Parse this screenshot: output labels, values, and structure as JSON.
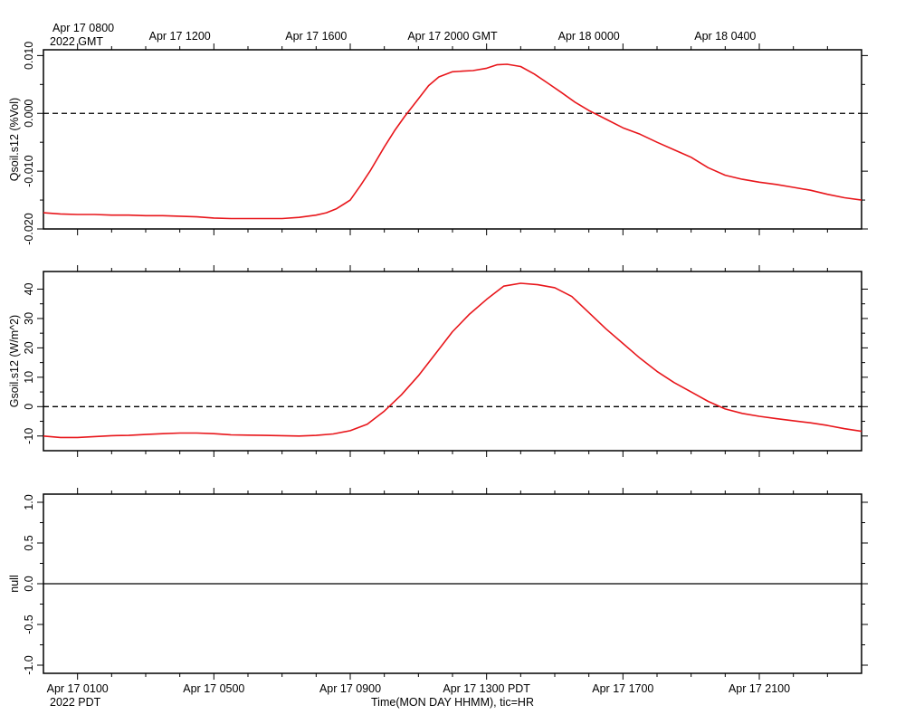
{
  "chart_data": [
    {
      "type": "line",
      "name_key": "panel-qsoil",
      "ylabel": "Qsoil.s12 (%Vol)",
      "ylim": [
        -0.02,
        0.011
      ],
      "yticks": [
        -0.02,
        -0.01,
        0.0,
        0.01
      ],
      "ytick_labels": [
        "-0.020",
        "-0.010",
        "0.000",
        "0.010"
      ],
      "reference_line": {
        "y": 0.0,
        "style": "dashed"
      },
      "series": [
        {
          "color": "#e8161b",
          "x": [
            0,
            0.5,
            1,
            1.5,
            2,
            2.5,
            3,
            3.5,
            4,
            4.5,
            5,
            5.5,
            6,
            6.5,
            7,
            7.5,
            8,
            8.3,
            8.6,
            9,
            9.3,
            9.6,
            10,
            10.3,
            10.6,
            11,
            11.3,
            11.6,
            12,
            12.3,
            12.6,
            13,
            13.3,
            13.6,
            14,
            14.4,
            14.8,
            15.2,
            15.6,
            16,
            16.5,
            17,
            17.5,
            18,
            18.5,
            19,
            19.5,
            20,
            20.5,
            21,
            21.5,
            22,
            22.5,
            23,
            23.5,
            24
          ],
          "y": [
            -0.0172,
            -0.0174,
            -0.0175,
            -0.0175,
            -0.0176,
            -0.0176,
            -0.0177,
            -0.0177,
            -0.0178,
            -0.0179,
            -0.0181,
            -0.0182,
            -0.0182,
            -0.0182,
            -0.0182,
            -0.018,
            -0.0176,
            -0.0172,
            -0.0165,
            -0.015,
            -0.0125,
            -0.0098,
            -0.0058,
            -0.003,
            -0.0005,
            0.0025,
            0.0048,
            0.0063,
            0.0072,
            0.0073,
            0.0074,
            0.0078,
            0.0084,
            0.0085,
            0.0081,
            0.0068,
            0.0052,
            0.0036,
            0.0019,
            0.0005,
            -0.001,
            -0.0025,
            -0.0036,
            -0.005,
            -0.0063,
            -0.0076,
            -0.0094,
            -0.0107,
            -0.0114,
            -0.0119,
            -0.0123,
            -0.0128,
            -0.0133,
            -0.014,
            -0.0146,
            -0.015
          ]
        }
      ]
    },
    {
      "type": "line",
      "name_key": "panel-gsoil",
      "ylabel": "Gsoil.s12 (W/m^2)",
      "ylim": [
        -15,
        46
      ],
      "yticks": [
        -10,
        0,
        10,
        20,
        30,
        40
      ],
      "ytick_labels": [
        "-10",
        "0",
        "10",
        "20",
        "30",
        "40"
      ],
      "reference_line": {
        "y": 0,
        "style": "dashed"
      },
      "series": [
        {
          "color": "#e8161b",
          "x": [
            0,
            0.5,
            1,
            1.5,
            2,
            2.5,
            3,
            3.5,
            4,
            4.5,
            5,
            5.5,
            6,
            6.5,
            7,
            7.5,
            8,
            8.5,
            9,
            9.5,
            10,
            10.5,
            11,
            11.5,
            12,
            12.5,
            13,
            13.5,
            14,
            14.5,
            15,
            15.5,
            16,
            16.5,
            17,
            17.5,
            18,
            18.5,
            19,
            19.5,
            20,
            20.5,
            21,
            21.5,
            22,
            22.5,
            23,
            23.5,
            24
          ],
          "y": [
            -10,
            -10.5,
            -10.5,
            -10.2,
            -9.9,
            -9.8,
            -9.5,
            -9.2,
            -9,
            -9,
            -9.2,
            -9.6,
            -9.7,
            -9.8,
            -9.9,
            -10,
            -9.8,
            -9.3,
            -8.2,
            -6,
            -1.5,
            4,
            10.5,
            18,
            25.5,
            31.5,
            36.5,
            41,
            42,
            41.5,
            40.5,
            37.5,
            32,
            26.5,
            21.5,
            16.5,
            12,
            8.2,
            5,
            1.8,
            -0.8,
            -2.3,
            -3.3,
            -4.1,
            -4.8,
            -5.5,
            -6.4,
            -7.5,
            -8.4
          ]
        }
      ]
    },
    {
      "type": "line",
      "name_key": "panel-null",
      "ylabel": "null",
      "ylim": [
        -1.1,
        1.1
      ],
      "yticks": [
        -1.0,
        -0.5,
        0.0,
        0.5,
        1.0
      ],
      "ytick_labels": [
        "-1.0",
        "-0.5",
        "0.0",
        "0.5",
        "1.0"
      ],
      "reference_line": {
        "y": 0,
        "style": "solid"
      },
      "series": []
    }
  ],
  "top_axis": {
    "start_label_line1": "Apr 17 0800",
    "start_label_line2": "2022 GMT",
    "labels": [
      {
        "x": 4,
        "text": "Apr 17 1200"
      },
      {
        "x": 8,
        "text": "Apr 17 1600"
      },
      {
        "x": 12,
        "text": "Apr 17 2000 GMT"
      },
      {
        "x": 16,
        "text": "Apr 18 0000"
      },
      {
        "x": 20,
        "text": "Apr 18 0400"
      }
    ]
  },
  "bottom_axis": {
    "start_label_line2": "2022 PDT",
    "labels": [
      {
        "x": 1,
        "text": "Apr 17 0100"
      },
      {
        "x": 5,
        "text": "Apr 17 0500"
      },
      {
        "x": 9,
        "text": "Apr 17 0900"
      },
      {
        "x": 13,
        "text": "Apr 17 1300 PDT"
      },
      {
        "x": 17,
        "text": "Apr 17 1700"
      },
      {
        "x": 21,
        "text": "Apr 17 2100"
      }
    ],
    "xlabel": "Time(MON DAY HHMM), tic=HR"
  },
  "x_range_hours": [
    0,
    24
  ],
  "colors": {
    "line": "#e8161b",
    "axis": "#000000"
  }
}
